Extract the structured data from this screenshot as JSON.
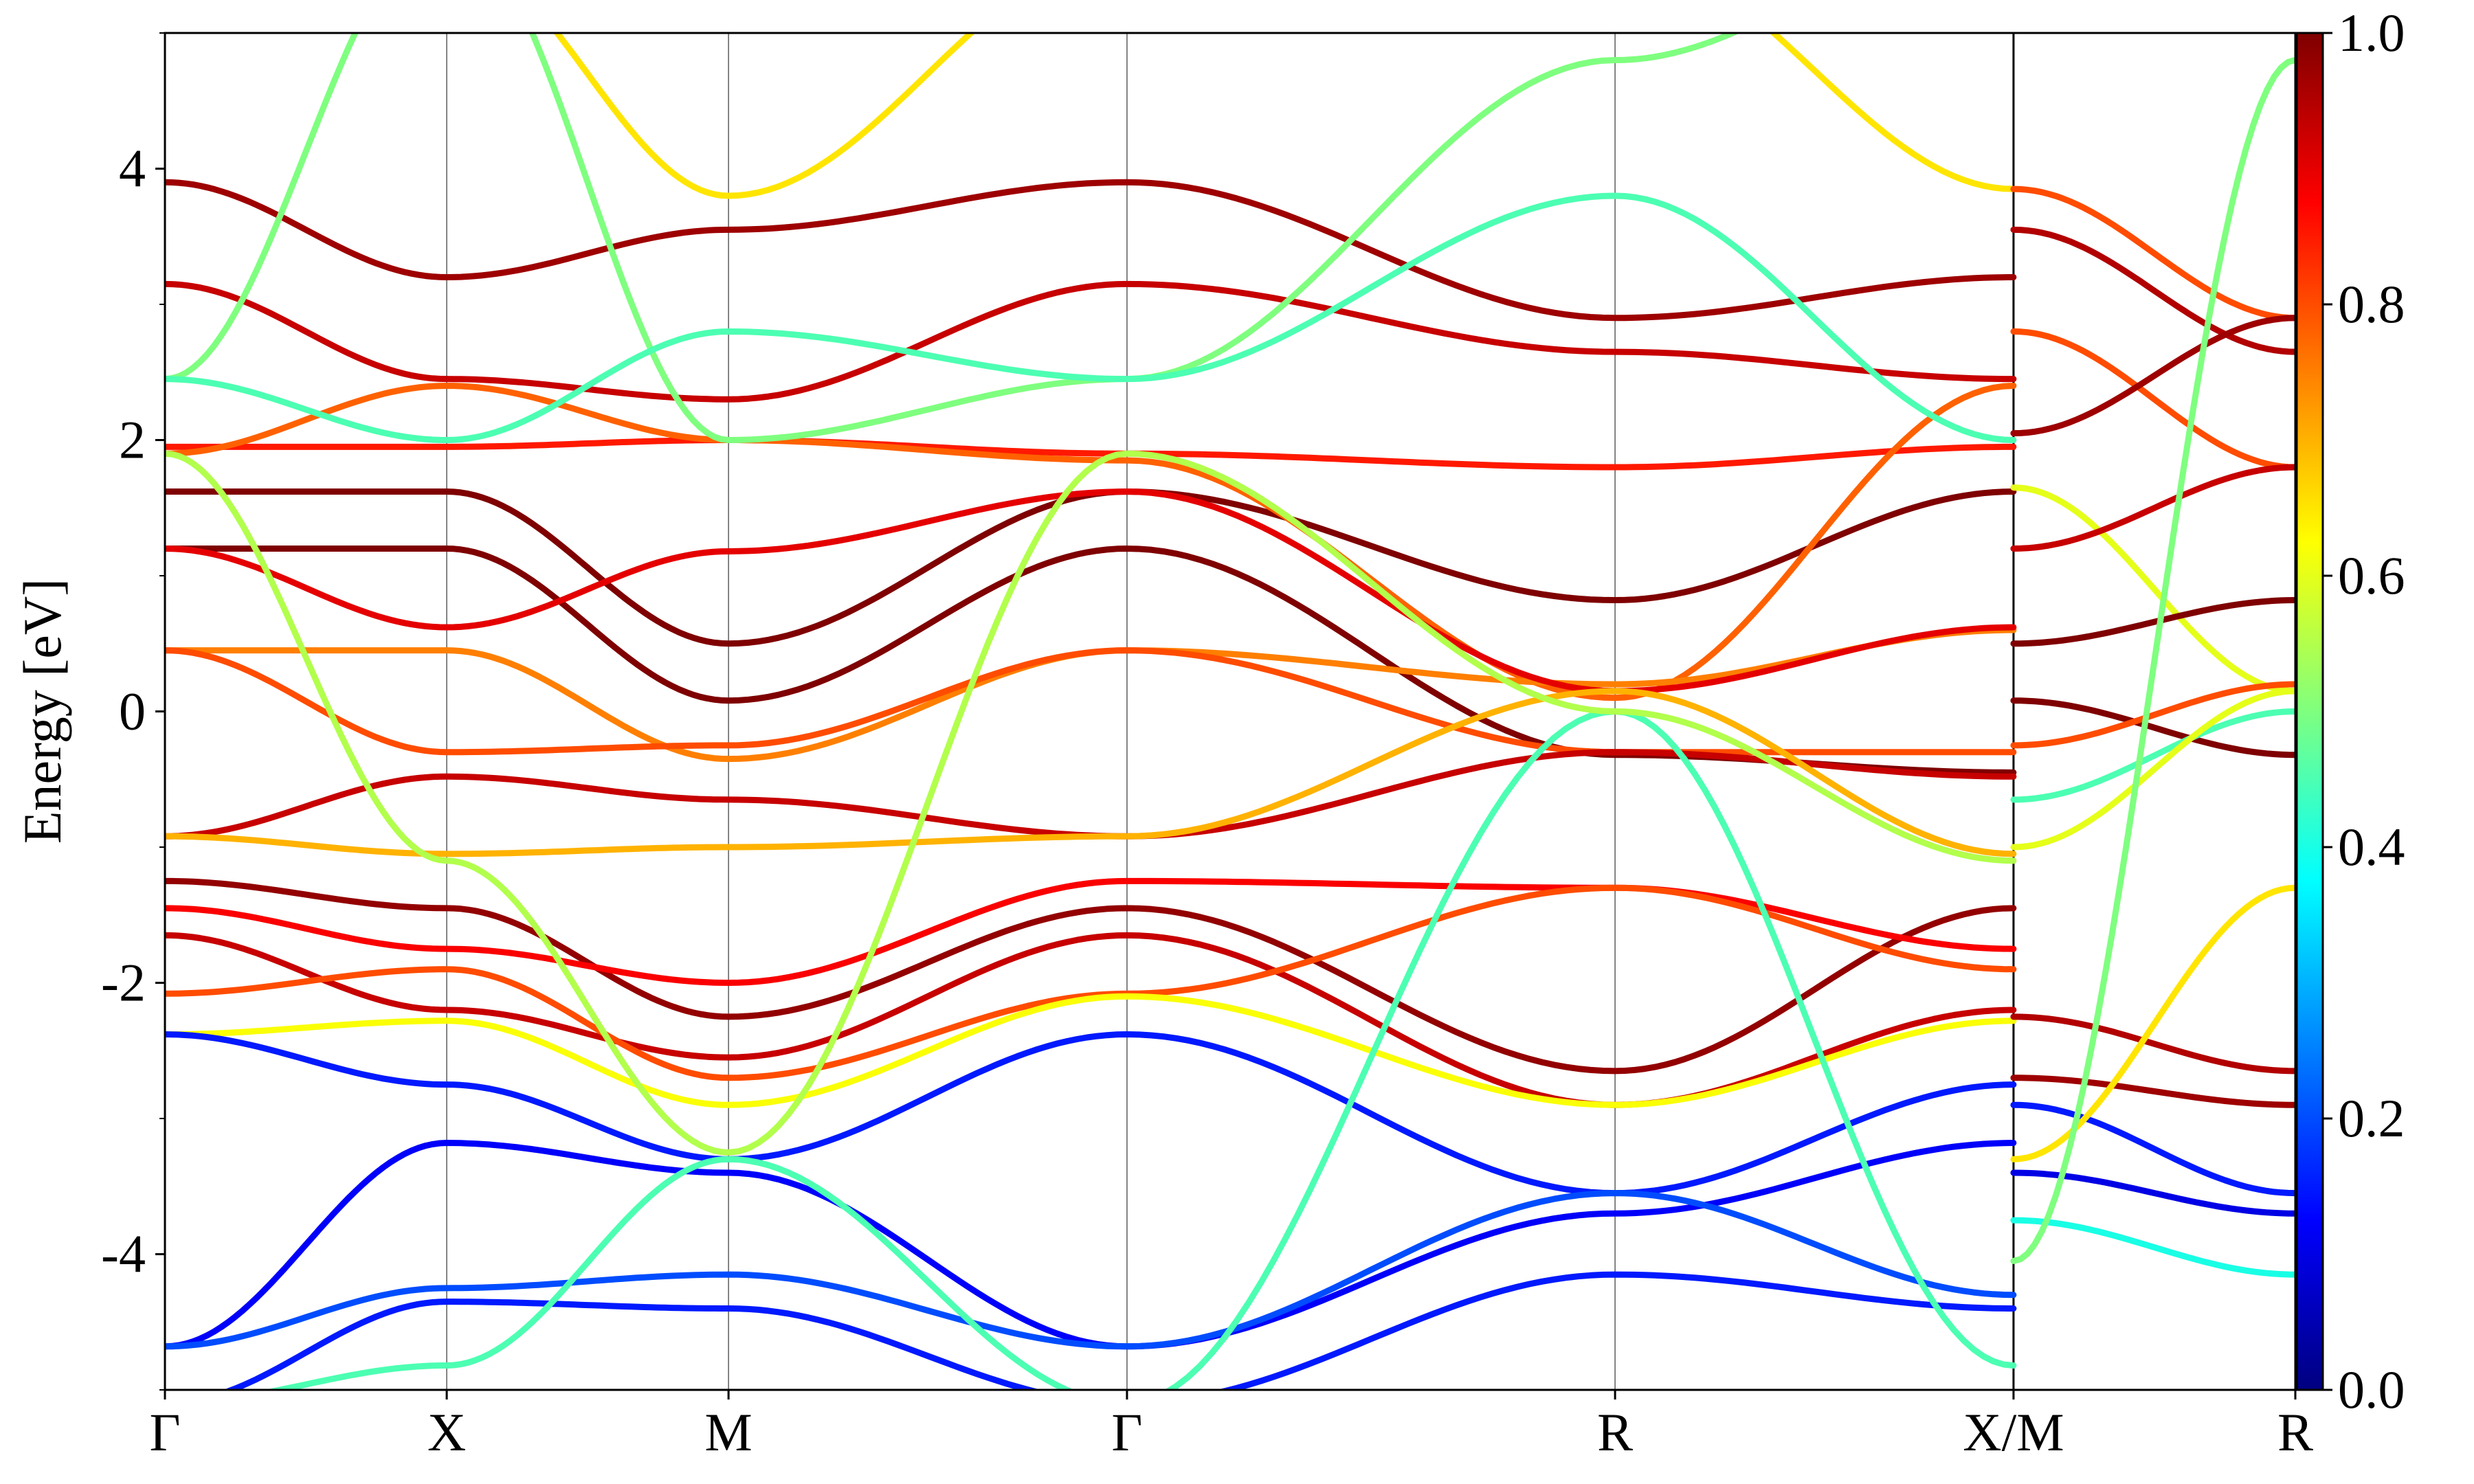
{
  "chart_data": {
    "type": "line",
    "title": "",
    "xlabel": "",
    "ylabel": "Energy [eV]",
    "ylim": [
      -5,
      5
    ],
    "y_ticks": [
      "-4",
      "-2",
      "0",
      "2",
      "4"
    ],
    "y_tick_values": [
      -4,
      -2,
      0,
      2,
      4
    ],
    "k_path_labels": [
      "Γ",
      "X",
      "M",
      "Γ",
      "R",
      "X/M",
      "R"
    ],
    "k_path_positions": [
      0,
      0.5,
      1.0,
      1.707,
      2.573,
      3.28,
      3.78
    ],
    "k_range": [
      0,
      3.78
    ],
    "path_break_after_index": 5,
    "grid": "vertical lines at high-symmetry points",
    "colorbar": {
      "colormap": "jet",
      "range": [
        0.0,
        1.0
      ],
      "tick_labels": [
        "0.0",
        "0.2",
        "0.4",
        "0.6",
        "0.8",
        "1.0"
      ],
      "tick_values": [
        0.0,
        0.2,
        0.4,
        0.6,
        0.8,
        1.0
      ],
      "colors": [
        "#00007f",
        "#0000ff",
        "#007fff",
        "#00ffff",
        "#7fff7f",
        "#ffff00",
        "#ff7f00",
        "#ff0000",
        "#7f0000"
      ]
    },
    "series": [
      {
        "x": [
          0,
          0.5,
          1.0,
          1.707,
          2.573,
          3.28
        ],
        "y": [
          3.9,
          3.2,
          3.55,
          3.9,
          2.9,
          3.2
        ],
        "weight": 0.97
      },
      {
        "x": [
          0,
          0.5,
          1.0,
          1.707,
          2.573,
          3.28
        ],
        "y": [
          3.15,
          2.45,
          2.3,
          3.15,
          2.65,
          2.45
        ],
        "weight": 0.93
      },
      {
        "x": [
          0,
          0.5,
          1.0,
          1.707,
          2.573,
          3.28
        ],
        "y": [
          1.62,
          1.62,
          0.5,
          1.62,
          0.82,
          1.62
        ],
        "weight": 1.0
      },
      {
        "x": [
          0,
          0.5,
          1.0,
          1.707,
          2.573,
          3.28
        ],
        "y": [
          1.2,
          1.2,
          0.08,
          1.2,
          -0.32,
          -0.45
        ],
        "weight": 1.0
      },
      {
        "x": [
          0,
          0.5,
          1.0,
          1.707,
          2.573,
          3.28
        ],
        "y": [
          1.95,
          1.95,
          2.0,
          1.9,
          1.8,
          1.95
        ],
        "weight": 0.85
      },
      {
        "x": [
          0,
          0.5,
          1.0,
          1.707,
          2.573,
          3.28
        ],
        "y": [
          1.9,
          2.4,
          2.0,
          1.85,
          0.1,
          2.4
        ],
        "weight": 0.78
      },
      {
        "x": [
          0,
          0.5,
          1.0,
          1.707,
          2.573,
          3.28
        ],
        "y": [
          0.45,
          0.45,
          -0.35,
          0.45,
          0.2,
          0.6
        ],
        "weight": 0.75
      },
      {
        "x": [
          0,
          0.5,
          1.0,
          1.707,
          2.573,
          3.28
        ],
        "y": [
          0.45,
          -0.3,
          -0.25,
          0.45,
          -0.3,
          -0.3
        ],
        "weight": 0.8
      },
      {
        "x": [
          0,
          0.5,
          1.0,
          1.707,
          2.573,
          3.28
        ],
        "y": [
          1.2,
          0.62,
          1.18,
          1.62,
          0.15,
          0.62
        ],
        "weight": 0.9
      },
      {
        "x": [
          0,
          0.5,
          1.0,
          1.707,
          2.573,
          3.28
        ],
        "y": [
          -0.92,
          -0.48,
          -0.65,
          -0.92,
          -0.3,
          -0.48
        ],
        "weight": 0.93
      },
      {
        "x": [
          0,
          0.5,
          1.0,
          1.707,
          2.573,
          3.28
        ],
        "y": [
          -0.92,
          -1.05,
          -1.0,
          -0.92,
          0.15,
          -1.05
        ],
        "weight": 0.7
      },
      {
        "x": [
          0,
          0.5,
          1.0,
          1.707,
          2.573,
          3.28
        ],
        "y": [
          -1.25,
          -1.45,
          -2.25,
          -1.45,
          -2.65,
          -1.45
        ],
        "weight": 0.98
      },
      {
        "x": [
          0,
          0.5,
          1.0,
          1.707,
          2.573,
          3.28
        ],
        "y": [
          -1.45,
          -1.75,
          -2.0,
          -1.25,
          -1.3,
          -1.75
        ],
        "weight": 0.88
      },
      {
        "x": [
          0,
          0.5,
          1.0,
          1.707,
          2.573,
          3.28
        ],
        "y": [
          -1.65,
          -2.2,
          -2.55,
          -1.65,
          -2.9,
          -2.2
        ],
        "weight": 0.93
      },
      {
        "x": [
          0,
          0.5,
          1.0,
          1.707,
          2.573,
          3.28
        ],
        "y": [
          -2.08,
          -1.9,
          -2.7,
          -2.08,
          -1.3,
          -1.9
        ],
        "weight": 0.8
      },
      {
        "x": [
          0,
          0.5,
          1.0,
          1.707,
          2.573,
          3.28
        ],
        "y": [
          -2.38,
          -2.28,
          -2.9,
          -2.1,
          -2.9,
          -2.28
        ],
        "weight": 0.62
      },
      {
        "x": [
          0,
          0.5,
          1.0,
          1.707,
          2.573,
          3.28
        ],
        "y": [
          -2.38,
          -2.75,
          -3.3,
          -2.38,
          -3.55,
          -2.75
        ],
        "weight": 0.15
      },
      {
        "x": [
          0,
          0.5,
          1.0,
          1.707,
          2.573,
          3.28
        ],
        "y": [
          -4.68,
          -3.18,
          -3.4,
          -4.68,
          -3.7,
          -3.18
        ],
        "weight": 0.12
      },
      {
        "x": [
          0,
          0.5,
          1.0,
          1.707,
          2.573,
          3.28
        ],
        "y": [
          -4.68,
          -4.25,
          -4.15,
          -4.68,
          -3.55,
          -4.3
        ],
        "weight": 0.2
      },
      {
        "x": [
          0,
          0.5,
          1.0,
          1.707,
          2.573,
          3.28
        ],
        "y": [
          -5.1,
          -4.35,
          -4.4,
          -5.1,
          -4.15,
          -4.4
        ],
        "weight": 0.15
      },
      {
        "x": [
          0,
          0.5,
          1.0,
          1.707,
          2.573,
          3.28
        ],
        "y": [
          -5.1,
          -4.82,
          -3.3,
          -5.1,
          0.0,
          -4.82
        ],
        "weight": 0.45
      },
      {
        "x": [
          0,
          0.5,
          1.0,
          1.707,
          2.573,
          3.28
        ],
        "y": [
          2.45,
          5.8,
          2.0,
          2.45,
          4.8,
          5.8
        ],
        "weight": 0.5
      },
      {
        "x": [
          0,
          0.5,
          1.0,
          1.707,
          2.573,
          3.28
        ],
        "y": [
          2.45,
          2.0,
          2.8,
          2.45,
          3.8,
          2.0
        ],
        "weight": 0.45
      },
      {
        "x": [
          0,
          0.5,
          1.0,
          1.707,
          2.573,
          3.28
        ],
        "y": [
          1.9,
          -1.1,
          -3.25,
          1.9,
          0.0,
          -1.1
        ],
        "weight": 0.55
      },
      {
        "x": [
          0,
          0.5,
          1.0,
          1.707,
          2.573,
          3.28
        ],
        "y": [
          5.6,
          5.6,
          3.8,
          5.6,
          5.6,
          3.85
        ],
        "weight": 0.65
      },
      {
        "x": [
          3.28,
          3.78
        ],
        "y": [
          3.85,
          2.9
        ],
        "weight": 0.8
      },
      {
        "x": [
          3.28,
          3.78
        ],
        "y": [
          3.55,
          2.65
        ],
        "weight": 0.95
      },
      {
        "x": [
          3.28,
          3.78
        ],
        "y": [
          2.8,
          1.8
        ],
        "weight": 0.8
      },
      {
        "x": [
          3.28,
          3.78
        ],
        "y": [
          2.05,
          2.9
        ],
        "weight": 0.97
      },
      {
        "x": [
          3.28,
          3.78
        ],
        "y": [
          1.65,
          0.15
        ],
        "weight": 0.6
      },
      {
        "x": [
          3.28,
          3.78
        ],
        "y": [
          1.2,
          1.8
        ],
        "weight": 0.93
      },
      {
        "x": [
          3.28,
          3.78
        ],
        "y": [
          0.5,
          0.82
        ],
        "weight": 1.0
      },
      {
        "x": [
          3.28,
          3.78
        ],
        "y": [
          0.08,
          -0.32
        ],
        "weight": 1.0
      },
      {
        "x": [
          3.28,
          3.78
        ],
        "y": [
          -0.25,
          0.2
        ],
        "weight": 0.8
      },
      {
        "x": [
          3.28,
          3.78
        ],
        "y": [
          -0.65,
          0.0
        ],
        "weight": 0.45
      },
      {
        "x": [
          3.28,
          3.78
        ],
        "y": [
          -1.0,
          0.15
        ],
        "weight": 0.6
      },
      {
        "x": [
          3.28,
          3.78
        ],
        "y": [
          -2.25,
          -2.65
        ],
        "weight": 0.95
      },
      {
        "x": [
          3.28,
          3.78
        ],
        "y": [
          -2.7,
          -2.9
        ],
        "weight": 0.97
      },
      {
        "x": [
          3.28,
          3.78
        ],
        "y": [
          -2.9,
          -3.55
        ],
        "weight": 0.15
      },
      {
        "x": [
          3.28,
          3.78
        ],
        "y": [
          -3.3,
          -1.3
        ],
        "weight": 0.65
      },
      {
        "x": [
          3.28,
          3.78
        ],
        "y": [
          -3.4,
          -3.7
        ],
        "weight": 0.1
      },
      {
        "x": [
          3.28,
          3.78
        ],
        "y": [
          -3.75,
          -4.15
        ],
        "weight": 0.4
      },
      {
        "x": [
          3.28,
          3.78
        ],
        "y": [
          -4.05,
          4.8
        ],
        "weight": 0.5
      }
    ]
  }
}
